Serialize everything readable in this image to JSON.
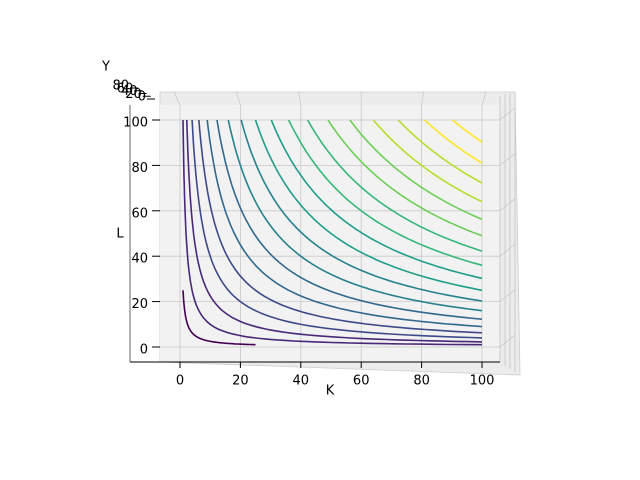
{
  "chart_data": {
    "type": "contour",
    "x_label": "K",
    "y_label": "L",
    "z_label": "Y",
    "xticks": [
      0,
      20,
      40,
      60,
      80,
      100
    ],
    "yticks": [
      0,
      20,
      40,
      60,
      80,
      100
    ],
    "zticks": [
      0,
      20,
      40,
      60,
      80
    ],
    "xlim": [
      -5,
      105
    ],
    "ylim": [
      -5,
      105
    ],
    "K": [
      1,
      100
    ],
    "L": [
      1,
      100
    ],
    "levels": [
      5,
      10,
      15,
      20,
      25,
      30,
      35,
      40,
      45,
      50,
      55,
      60,
      65,
      70,
      75,
      80,
      85,
      90,
      95
    ],
    "colormap": "viridis",
    "grid": true
  }
}
